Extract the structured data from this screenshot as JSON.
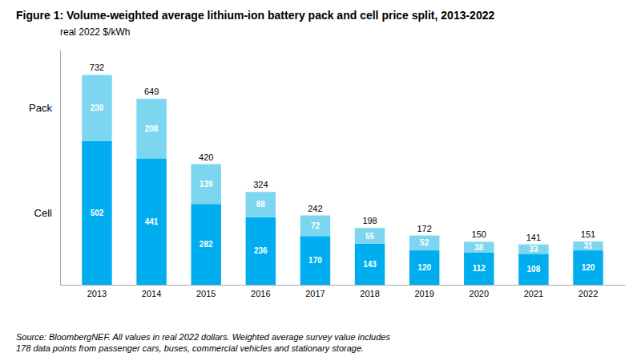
{
  "chart_data": {
    "type": "bar",
    "stacked": true,
    "title": "Figure 1: Volume-weighted average lithium-ion battery pack and cell price split, 2013-2022",
    "subtitle": "real 2022 $/kWh",
    "footer": "Source: BloombergNEF. All values in real 2022 dollars. Weighted average survey value includes\n178 data points from passenger cars, buses, commercial vehicles and stationary storage.",
    "categories": [
      "2013",
      "2014",
      "2015",
      "2016",
      "2017",
      "2018",
      "2019",
      "2020",
      "2021",
      "2022"
    ],
    "series": [
      {
        "name": "Cell",
        "color": "#00AEEF",
        "values": [
          502,
          441,
          282,
          236,
          170,
          143,
          120,
          112,
          108,
          120
        ]
      },
      {
        "name": "Pack",
        "color": "#7DD6F0",
        "values": [
          230,
          208,
          139,
          88,
          72,
          55,
          52,
          38,
          33,
          31
        ]
      }
    ],
    "totals": [
      732,
      649,
      420,
      324,
      242,
      198,
      172,
      150,
      141,
      151
    ],
    "ylim": [
      0,
      820
    ],
    "grid": false,
    "data_labels": true,
    "tick_labels": "x"
  }
}
